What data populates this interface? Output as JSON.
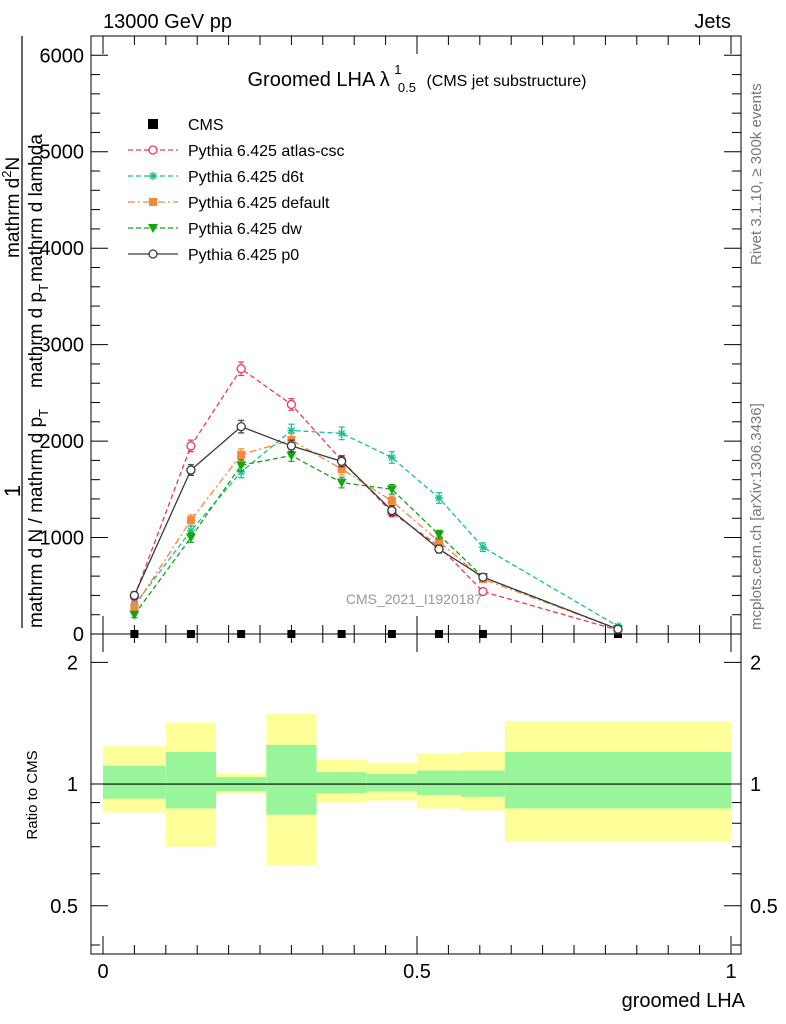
{
  "header": {
    "left": "13000 GeV pp",
    "right": "Jets"
  },
  "side_labels": {
    "rivet": "Rivet 3.1.10, ≥ 300k events",
    "mcplots": "mcplots.cern.ch [arXiv:1306.3436]"
  },
  "chart_data": {
    "type": "line",
    "title": {
      "main": "Groomed LHA",
      "symbol": "λ",
      "superscript": "1",
      "subscript": "0.5",
      "note": "(CMS jet substructure)"
    },
    "watermark": "CMS_2021_I1920187",
    "ylabel": {
      "one": "1",
      "frac_top": "mathrm d N / mathrm d p",
      "frac_sub": "T",
      "rhs_top": "mathrm d",
      "rhs_sup": "2",
      "rhs_N": "N",
      "rhs_bottom": "mathrm d p",
      "rhs_bottom_sub": "T",
      "rhs_bottom_tail": "mathrm d lambda"
    },
    "xlabel": "groomed LHA",
    "xlim": [
      0,
      1
    ],
    "ylim": [
      0,
      6200
    ],
    "x_ticks": [
      "0",
      "0.5",
      "1"
    ],
    "x_tick_values": [
      0,
      0.5,
      1
    ],
    "y_ticks": [
      "0",
      "1000",
      "2000",
      "3000",
      "4000",
      "5000",
      "6000"
    ],
    "y_tick_values": [
      0,
      1000,
      2000,
      3000,
      4000,
      5000,
      6000
    ],
    "x": [
      0.05,
      0.14,
      0.22,
      0.3,
      0.38,
      0.46,
      0.535,
      0.605,
      0.82
    ],
    "series": [
      {
        "name": "CMS",
        "color": "#000000",
        "marker": "square-filled",
        "dash": "none",
        "values": [
          0,
          0,
          0,
          0,
          0,
          0,
          0,
          0,
          0
        ]
      },
      {
        "name": "Pythia 6.425 atlas-csc",
        "color": "#e8395e",
        "marker": "circle-open",
        "dash": "dashed",
        "values": [
          390,
          1950,
          2750,
          2380,
          1800,
          1260,
          910,
          440,
          40
        ],
        "errors": [
          40,
          60,
          70,
          60,
          50,
          45,
          40,
          30,
          15
        ]
      },
      {
        "name": "Pythia 6.425 d6t",
        "color": "#19c08e",
        "marker": "star",
        "dash": "dashed",
        "values": [
          300,
          1070,
          1680,
          2110,
          2080,
          1830,
          1410,
          900,
          80
        ],
        "errors": [
          35,
          50,
          60,
          65,
          65,
          60,
          55,
          45,
          20
        ]
      },
      {
        "name": "Pythia 6.425 default",
        "color": "#f5883a",
        "marker": "square-filled",
        "dash": "dashdot",
        "values": [
          280,
          1180,
          1860,
          2010,
          1710,
          1380,
          960,
          570,
          50
        ],
        "errors": [
          35,
          55,
          60,
          65,
          60,
          50,
          45,
          35,
          15
        ]
      },
      {
        "name": "Pythia 6.425 dw",
        "color": "#12a612",
        "marker": "triangle-down-filled",
        "dash": "dashed",
        "values": [
          200,
          1000,
          1750,
          1850,
          1570,
          1500,
          1030,
          590,
          50
        ],
        "errors": [
          30,
          50,
          60,
          60,
          55,
          50,
          45,
          35,
          15
        ]
      },
      {
        "name": "Pythia 6.425 p0",
        "color": "#3a3a3a",
        "marker": "circle-open",
        "dash": "solid",
        "values": [
          400,
          1700,
          2150,
          1950,
          1790,
          1280,
          880,
          590,
          50
        ],
        "errors": [
          40,
          55,
          65,
          60,
          55,
          50,
          40,
          35,
          15
        ]
      }
    ],
    "ratio": {
      "ylabel": "Ratio to CMS",
      "ylim": [
        0.38,
        2.35
      ],
      "log": true,
      "y_ticks": [
        "0.5",
        "1",
        "2"
      ],
      "y_tick_values": [
        0.5,
        1,
        2
      ],
      "bins": [
        {
          "lo": 0.0,
          "hi": 0.1,
          "green": [
            0.92,
            1.11
          ],
          "yellow": [
            0.85,
            1.24
          ]
        },
        {
          "lo": 0.1,
          "hi": 0.18,
          "green": [
            0.87,
            1.2
          ],
          "yellow": [
            0.7,
            1.42
          ]
        },
        {
          "lo": 0.18,
          "hi": 0.26,
          "green": [
            0.96,
            1.04
          ],
          "yellow": [
            0.95,
            1.06
          ]
        },
        {
          "lo": 0.26,
          "hi": 0.34,
          "green": [
            0.84,
            1.25
          ],
          "yellow": [
            0.63,
            1.49
          ]
        },
        {
          "lo": 0.34,
          "hi": 0.42,
          "green": [
            0.95,
            1.07
          ],
          "yellow": [
            0.9,
            1.15
          ]
        },
        {
          "lo": 0.42,
          "hi": 0.5,
          "green": [
            0.96,
            1.06
          ],
          "yellow": [
            0.91,
            1.13
          ]
        },
        {
          "lo": 0.5,
          "hi": 0.57,
          "green": [
            0.94,
            1.08
          ],
          "yellow": [
            0.87,
            1.19
          ]
        },
        {
          "lo": 0.57,
          "hi": 0.64,
          "green": [
            0.93,
            1.08
          ],
          "yellow": [
            0.86,
            1.2
          ]
        },
        {
          "lo": 0.64,
          "hi": 1.0,
          "green": [
            0.87,
            1.2
          ],
          "yellow": [
            0.72,
            1.43
          ]
        }
      ]
    }
  }
}
